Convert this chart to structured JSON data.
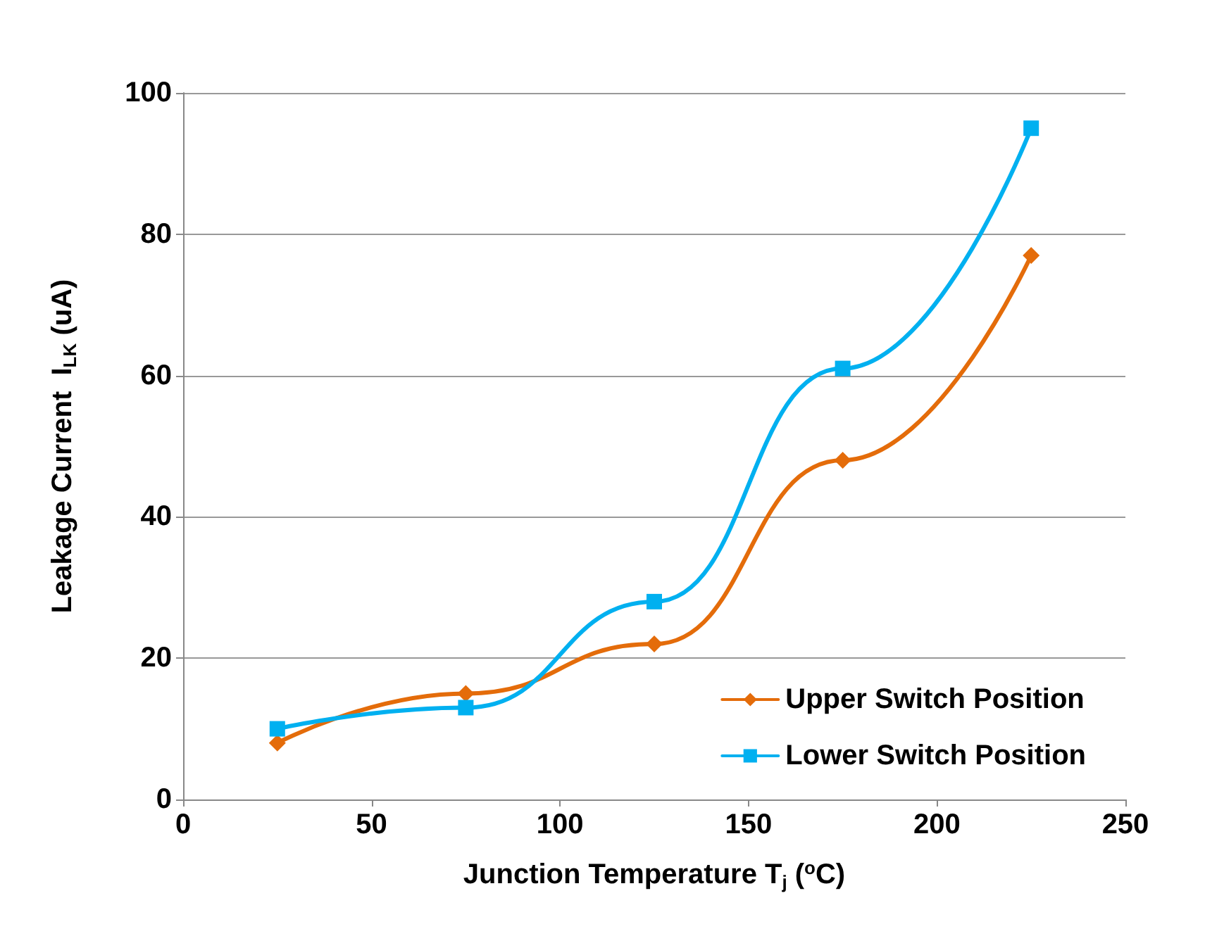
{
  "chart_data": {
    "type": "line",
    "xlabel": "Junction Temperature T$_{j}$ ($^{o}$C)",
    "ylabel": "Leakage Current  I$_{LK}$ (uA)",
    "x": [
      25,
      75,
      125,
      175,
      225
    ],
    "series": [
      {
        "name": "Upper Switch Position",
        "color": "#e46c0a",
        "marker": "diamond",
        "values": [
          8,
          15,
          22,
          48,
          77
        ]
      },
      {
        "name": "Lower Switch Position",
        "color": "#00b0f0",
        "marker": "square",
        "values": [
          10,
          13,
          28,
          61,
          95
        ]
      }
    ],
    "xlim": [
      0,
      250
    ],
    "xticks": [
      0,
      50,
      100,
      150,
      200,
      250
    ],
    "ylim": [
      0,
      100
    ],
    "yticks": [
      0,
      20,
      40,
      60,
      80,
      100
    ],
    "grid": "y",
    "legend": "bottom right",
    "line_style": "solid"
  }
}
